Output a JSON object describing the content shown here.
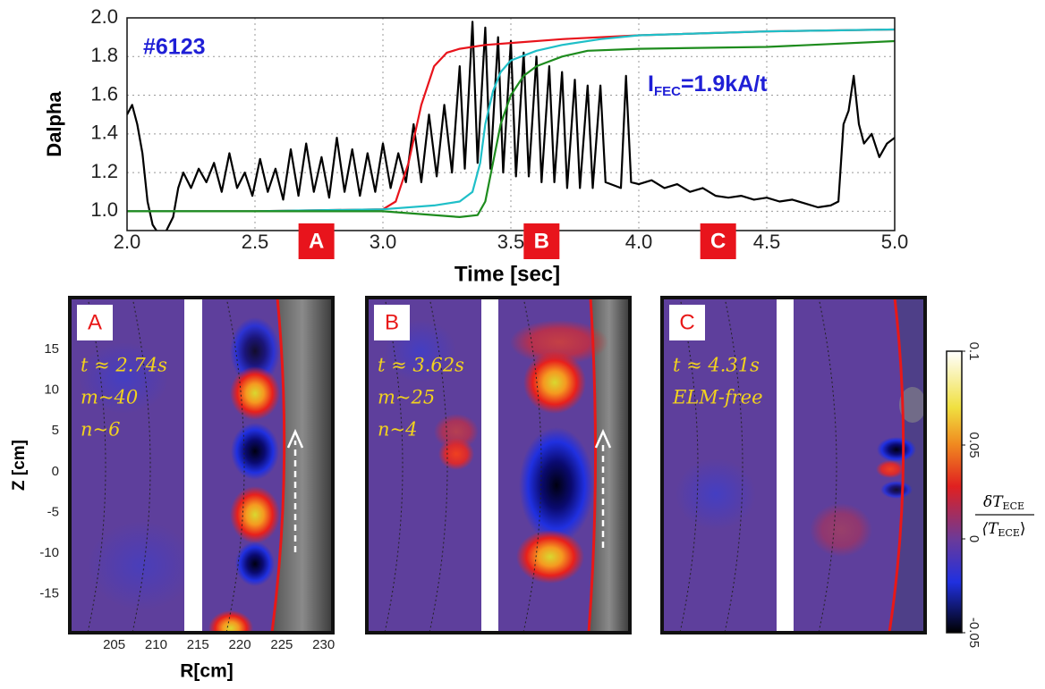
{
  "chart_data": [
    {
      "type": "line",
      "ylabel": "Dalpha",
      "xlabel": "Time [sec]",
      "xlim": [
        2.0,
        5.0
      ],
      "ylim": [
        0.9,
        2.0
      ],
      "xticks": [
        {
          "value": 2.0,
          "label": "2.0"
        },
        2.5,
        {
          "value": 3.0,
          "label": "3.0"
        },
        3.5,
        {
          "value": 4.0,
          "label": "4.0"
        },
        4.5,
        {
          "value": 5.0,
          "label": "5.0"
        }
      ],
      "yticks": [
        {
          "value": 1.0,
          "label": "1.0"
        },
        1.2,
        1.4,
        1.6,
        1.8,
        {
          "value": 2.0,
          "label": "2.0"
        }
      ],
      "grid": true,
      "annotations": [
        {
          "text": "#6123",
          "color": "#1f1fd6"
        },
        {
          "parts": [
            "I",
            "FEC",
            "=1.9kA/t"
          ],
          "color": "#1f1fd6"
        }
      ],
      "markers": [
        {
          "label": "A",
          "x": 2.74,
          "color": "#e8141c"
        },
        {
          "label": "B",
          "x": 3.62,
          "color": "#e8141c"
        },
        {
          "label": "C",
          "x": 4.31,
          "color": "#e8141c"
        }
      ],
      "series": [
        {
          "color": "#000000",
          "x": [
            2.0,
            2.02,
            2.04,
            2.06,
            2.08,
            2.1,
            2.12,
            2.15,
            2.18,
            2.2,
            2.22,
            2.25,
            2.28,
            2.31,
            2.34,
            2.37,
            2.4,
            2.43,
            2.46,
            2.49,
            2.52,
            2.55,
            2.58,
            2.61,
            2.64,
            2.67,
            2.7,
            2.73,
            2.76,
            2.79,
            2.82,
            2.85,
            2.88,
            2.91,
            2.94,
            2.97,
            3.0,
            3.03,
            3.06,
            3.09,
            3.12,
            3.15,
            3.18,
            3.21,
            3.24,
            3.27,
            3.3,
            3.32,
            3.35,
            3.37,
            3.4,
            3.42,
            3.45,
            3.47,
            3.5,
            3.52,
            3.55,
            3.57,
            3.6,
            3.62,
            3.65,
            3.67,
            3.7,
            3.72,
            3.75,
            3.77,
            3.8,
            3.82,
            3.85,
            3.87,
            3.93,
            3.95,
            3.97,
            4.0,
            4.05,
            4.1,
            4.15,
            4.2,
            4.25,
            4.3,
            4.35,
            4.4,
            4.45,
            4.5,
            4.55,
            4.6,
            4.65,
            4.7,
            4.75,
            4.78,
            4.8,
            4.82,
            4.84,
            4.86,
            4.88,
            4.91,
            4.94,
            4.97,
            5.0
          ],
          "values": [
            1.5,
            1.55,
            1.45,
            1.3,
            1.05,
            0.93,
            0.89,
            0.89,
            0.97,
            1.12,
            1.2,
            1.12,
            1.22,
            1.15,
            1.25,
            1.1,
            1.3,
            1.12,
            1.2,
            1.08,
            1.27,
            1.1,
            1.22,
            1.06,
            1.32,
            1.08,
            1.35,
            1.1,
            1.28,
            1.07,
            1.38,
            1.1,
            1.32,
            1.08,
            1.3,
            1.1,
            1.35,
            1.12,
            1.3,
            1.15,
            1.45,
            1.15,
            1.5,
            1.18,
            1.55,
            1.2,
            1.75,
            1.22,
            1.98,
            1.25,
            1.95,
            1.22,
            1.9,
            1.2,
            1.88,
            1.18,
            1.82,
            1.18,
            1.8,
            1.15,
            1.75,
            1.15,
            1.72,
            1.12,
            1.68,
            1.12,
            1.65,
            1.12,
            1.65,
            1.15,
            1.12,
            1.7,
            1.15,
            1.14,
            1.16,
            1.12,
            1.14,
            1.1,
            1.12,
            1.08,
            1.07,
            1.08,
            1.06,
            1.07,
            1.05,
            1.06,
            1.04,
            1.02,
            1.03,
            1.05,
            1.45,
            1.52,
            1.7,
            1.45,
            1.35,
            1.4,
            1.28,
            1.35,
            1.38
          ]
        },
        {
          "color": "#e8141c",
          "x": [
            2.0,
            2.5,
            3.0,
            3.05,
            3.1,
            3.15,
            3.2,
            3.25,
            3.3,
            3.4,
            3.5,
            3.7,
            4.0,
            4.5,
            5.0
          ],
          "values": [
            1.0,
            1.0,
            1.01,
            1.05,
            1.25,
            1.55,
            1.75,
            1.82,
            1.84,
            1.86,
            1.87,
            1.89,
            1.91,
            1.93,
            1.94
          ]
        },
        {
          "color": "#1fbfc8",
          "x": [
            2.0,
            2.5,
            3.0,
            3.2,
            3.3,
            3.35,
            3.38,
            3.4,
            3.43,
            3.46,
            3.5,
            3.6,
            3.7,
            3.85,
            4.0,
            4.5,
            5.0
          ],
          "values": [
            1.0,
            1.0,
            1.01,
            1.03,
            1.05,
            1.1,
            1.25,
            1.45,
            1.62,
            1.72,
            1.78,
            1.83,
            1.86,
            1.89,
            1.91,
            1.93,
            1.94
          ]
        },
        {
          "color": "#1e8c1e",
          "x": [
            2.0,
            2.5,
            3.0,
            3.3,
            3.37,
            3.4,
            3.43,
            3.46,
            3.5,
            3.55,
            3.6,
            3.7,
            3.8,
            4.0,
            4.5,
            5.0
          ],
          "values": [
            1.0,
            1.0,
            1.0,
            0.97,
            0.98,
            1.05,
            1.25,
            1.45,
            1.6,
            1.7,
            1.75,
            1.8,
            1.83,
            1.84,
            1.85,
            1.88
          ]
        }
      ]
    },
    {
      "type": "image",
      "ylabel": "Z [cm]",
      "xlabel": "R[cm]",
      "xlim": [
        199.7,
        231.1
      ],
      "ylim": [
        -19.8,
        21.4
      ],
      "xticks": [
        205,
        210,
        215,
        220,
        225,
        230
      ],
      "yticks": [
        -15,
        -10,
        -5,
        0,
        5,
        10,
        15
      ],
      "panels": [
        {
          "label": "A",
          "annotations": [
            "t ≈ 2.74s",
            "m~40",
            "n~6"
          ]
        },
        {
          "label": "B",
          "annotations": [
            "t ≈ 3.62s",
            "m~25",
            "n~4"
          ]
        },
        {
          "label": "C",
          "annotations": [
            "t ≈ 4.31s",
            "ELM-free"
          ]
        }
      ],
      "colorbar": {
        "lim": [
          -0.05,
          0.1
        ],
        "ticks": [
          -0.05,
          0,
          0.05,
          0.1
        ],
        "label": {
          "numerator": [
            "δT",
            "ECE"
          ],
          "denominator": [
            "⟨T",
            "ECE",
            "⟩"
          ]
        }
      }
    }
  ]
}
